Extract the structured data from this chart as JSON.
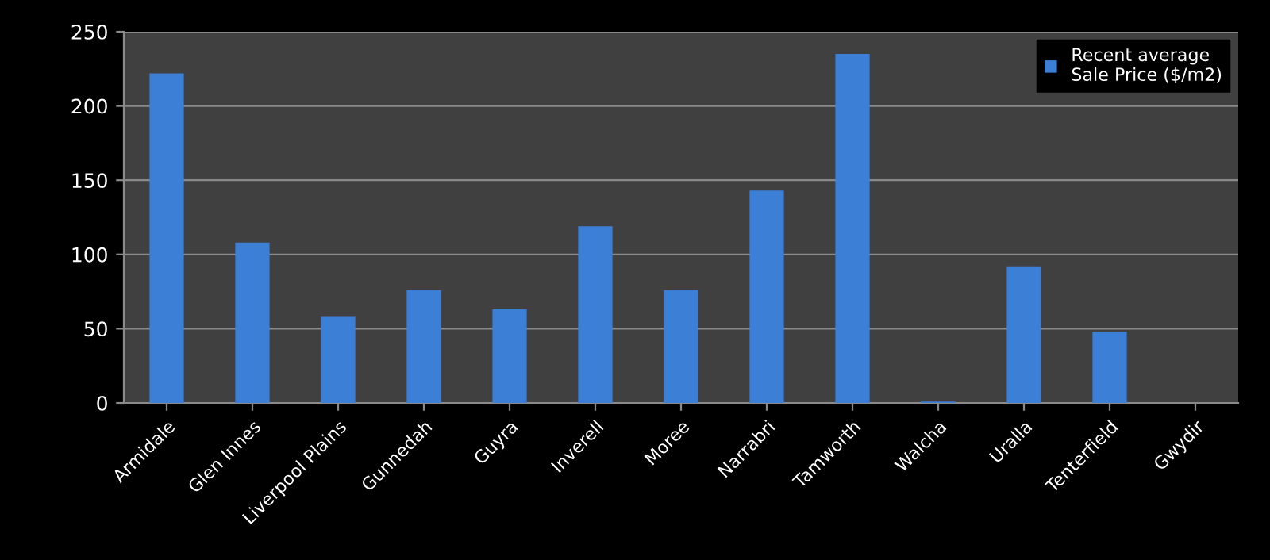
{
  "chart_data": {
    "type": "bar",
    "categories": [
      "Armidale",
      "Glen Innes",
      "Liverpool Plains",
      "Gunnedah",
      "Guyra",
      "Inverell",
      "Moree",
      "Narrabri",
      "Tamworth",
      "Walcha",
      "Uralla",
      "Tenterfield",
      "Gwydir"
    ],
    "series": [
      {
        "name": "Recent average\nSale Price ($/m2)",
        "color": "#3c7fd6",
        "values": [
          222,
          108,
          58,
          76,
          63,
          119,
          76,
          143,
          235,
          1,
          92,
          48,
          null
        ]
      }
    ],
    "ylim": [
      0,
      250
    ],
    "yticks": [
      0,
      50,
      100,
      150,
      200,
      250
    ],
    "grid": "y",
    "legend": "top right"
  }
}
